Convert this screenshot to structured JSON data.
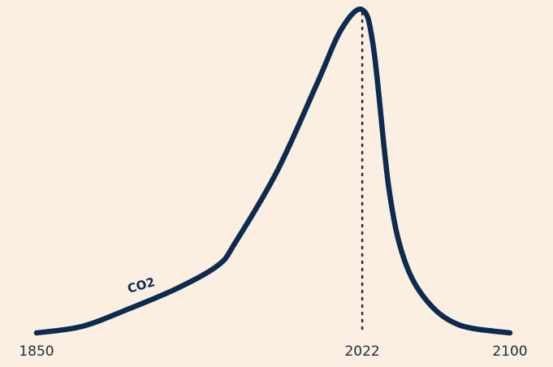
{
  "chart_data": {
    "type": "line",
    "x": [
      1850,
      1874,
      1899,
      1925,
      1946,
      1955,
      1977,
      1998,
      2011,
      2022,
      2028,
      2036,
      2044,
      2056,
      2073,
      2100
    ],
    "series": [
      {
        "name": "CO2",
        "color": "#0d2a4f",
        "values": [
          0,
          2,
          7.5,
          14,
          21,
          28,
          50,
          77,
          94,
          100,
          88,
          45,
          23,
          10,
          2.5,
          0
        ]
      }
    ],
    "xlim": [
      1850,
      2100
    ],
    "ylim": [
      0,
      100
    ],
    "xticks": [
      1850,
      2022,
      2100
    ],
    "grid": false
  }
}
